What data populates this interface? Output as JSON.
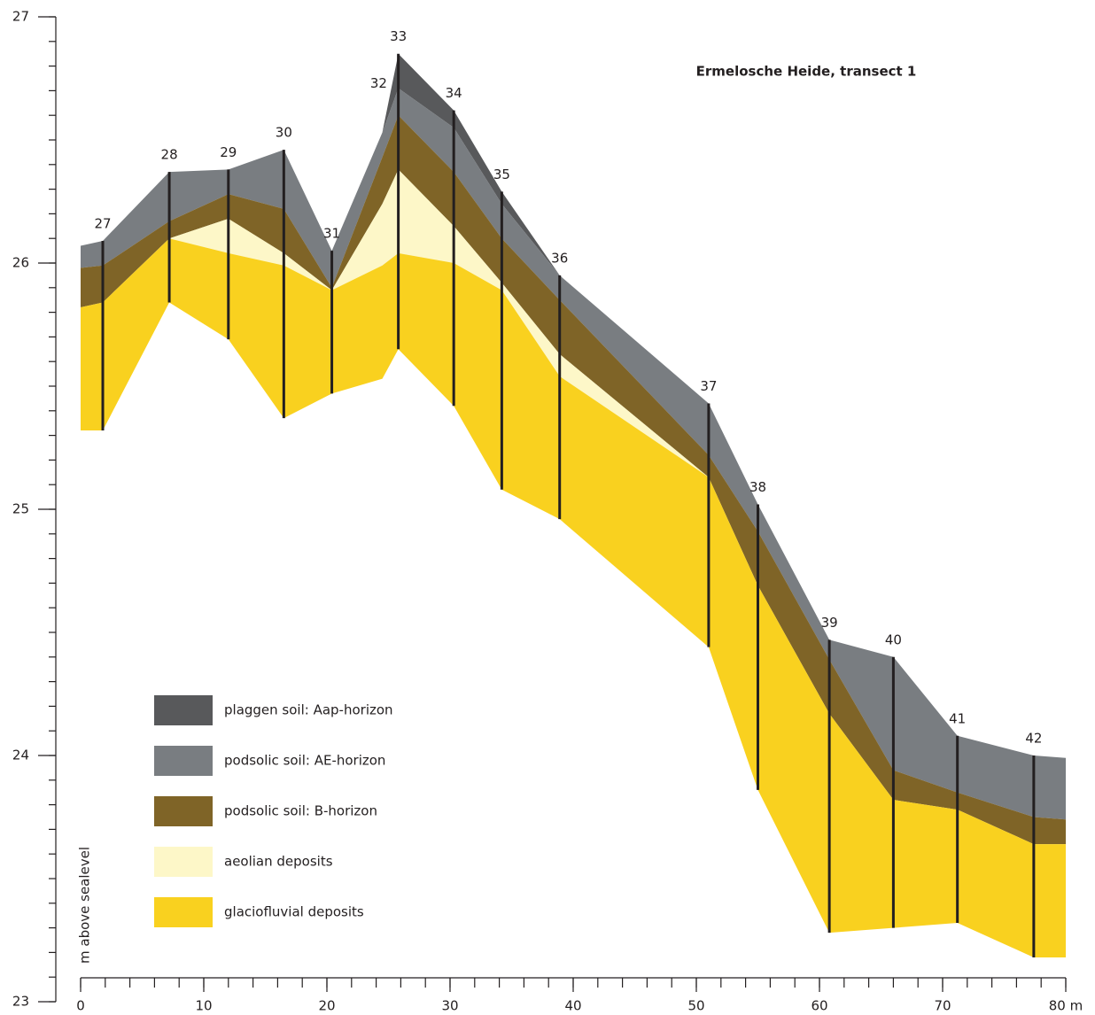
{
  "chart_data": {
    "type": "cross-section",
    "title": "Ermelosche Heide, transect 1",
    "ylabel": "m above sealevel",
    "xlim": [
      0,
      80
    ],
    "ylim": [
      23,
      27
    ],
    "xticks": [
      0,
      10,
      20,
      30,
      40,
      50,
      60,
      70,
      {
        "value": 80,
        "label": "80 m"
      }
    ],
    "yticks": [
      23,
      24,
      25,
      26,
      27
    ],
    "xminor": 2,
    "yminor": 0.1,
    "x": [
      0,
      1.8,
      7.2,
      12,
      16.5,
      20.4,
      24.5,
      25.8,
      30.3,
      34.2,
      38.9,
      51,
      55,
      60.8,
      66,
      71.2,
      77.4,
      80
    ],
    "surface": [
      26.07,
      26.09,
      26.37,
      26.38,
      26.46,
      26.05,
      26.53,
      26.85,
      26.62,
      26.29,
      25.95,
      25.43,
      25.02,
      24.47,
      24.4,
      24.08,
      24.0,
      23.99
    ],
    "series": [
      {
        "name": "plaggen soil: Aap-horizon",
        "color": "#58595b",
        "bottom": [
          26.07,
          26.09,
          26.37,
          26.38,
          26.46,
          26.05,
          26.53,
          26.71,
          26.55,
          26.24,
          25.95,
          25.43,
          25.02,
          24.47,
          24.4,
          24.08,
          24.0,
          23.99
        ]
      },
      {
        "name": "podsolic soil: AE-horizon",
        "color": "#797d81",
        "bottom": [
          25.98,
          25.99,
          26.17,
          26.28,
          26.22,
          25.9,
          26.43,
          26.6,
          26.37,
          26.1,
          25.85,
          25.22,
          24.91,
          24.39,
          23.94,
          23.85,
          23.75,
          23.74
        ]
      },
      {
        "name": "podsolic soil: B-horizon",
        "color": "#7f6427",
        "bottom": [
          25.82,
          25.84,
          26.1,
          26.18,
          26.04,
          25.89,
          26.24,
          26.38,
          26.15,
          25.92,
          25.63,
          25.13,
          24.69,
          24.17,
          23.82,
          23.78,
          23.64,
          23.64
        ]
      },
      {
        "name": "aeolian deposits",
        "color": "#fdf7c8",
        "bottom": [
          25.82,
          25.84,
          26.1,
          26.04,
          25.99,
          25.89,
          25.99,
          26.04,
          26.0,
          25.89,
          25.54,
          25.13,
          24.69,
          24.17,
          23.82,
          23.78,
          23.64,
          23.64
        ]
      },
      {
        "name": "glaciofluvial deposits",
        "color": "#f9d11f",
        "bottom": [
          25.32,
          25.32,
          25.84,
          25.69,
          25.37,
          25.47,
          25.53,
          25.65,
          25.42,
          25.08,
          24.96,
          24.44,
          23.86,
          23.28,
          23.3,
          23.32,
          23.18,
          23.18
        ]
      }
    ],
    "boreholes": [
      {
        "label": "27",
        "x": 1.8,
        "top": 26.09,
        "bottom": 25.32
      },
      {
        "label": "28",
        "x": 7.2,
        "top": 26.37,
        "bottom": 25.84
      },
      {
        "label": "29",
        "x": 12,
        "top": 26.38,
        "bottom": 25.69
      },
      {
        "label": "30",
        "x": 16.5,
        "top": 26.46,
        "bottom": 25.37
      },
      {
        "label": "31",
        "x": 20.4,
        "top": 26.05,
        "bottom": 25.47
      },
      {
        "label": "32",
        "x": 24.2,
        "top": 26.66,
        "bottom": null
      },
      {
        "label": "33",
        "x": 25.8,
        "top": 26.85,
        "bottom": 25.65
      },
      {
        "label": "34",
        "x": 30.3,
        "top": 26.62,
        "bottom": 25.42
      },
      {
        "label": "35",
        "x": 34.2,
        "top": 26.29,
        "bottom": 25.08
      },
      {
        "label": "36",
        "x": 38.9,
        "top": 25.95,
        "bottom": 24.96
      },
      {
        "label": "37",
        "x": 51,
        "top": 25.43,
        "bottom": 24.44
      },
      {
        "label": "38",
        "x": 55,
        "top": 25.02,
        "bottom": 23.86
      },
      {
        "label": "39",
        "x": 60.8,
        "top": 24.47,
        "bottom": 23.28
      },
      {
        "label": "40",
        "x": 66,
        "top": 24.4,
        "bottom": 23.3
      },
      {
        "label": "41",
        "x": 71.2,
        "top": 24.08,
        "bottom": 23.32
      },
      {
        "label": "42",
        "x": 77.4,
        "top": 24.0,
        "bottom": 23.18
      }
    ]
  }
}
